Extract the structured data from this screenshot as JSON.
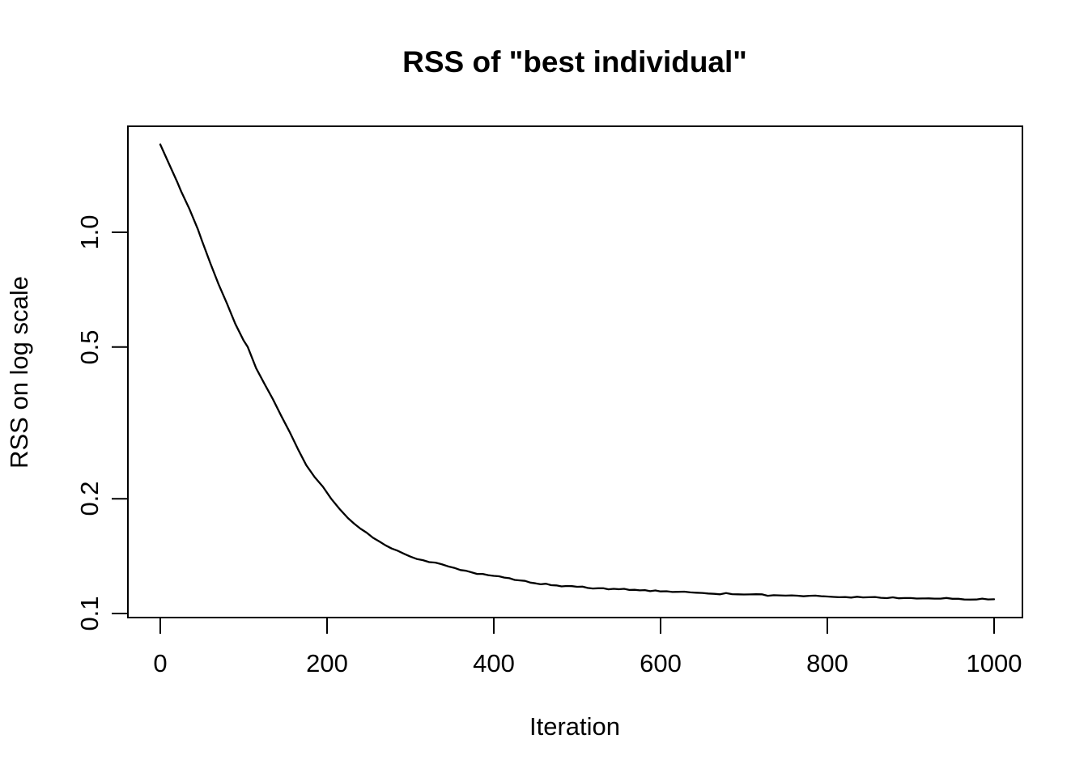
{
  "chart_data": {
    "type": "line",
    "title": "RSS of \"best individual\"",
    "xlabel": "Iteration",
    "ylabel": "RSS on log scale",
    "x_axis": {
      "ticks": [
        0,
        200,
        400,
        600,
        800,
        1000
      ],
      "range": [
        -39,
        1034
      ]
    },
    "y_axis": {
      "scale": "log10",
      "ticks": [
        {
          "label": "1.0",
          "value": 1.0
        },
        {
          "label": "0.5",
          "value": 0.5
        },
        {
          "label": "0.2",
          "value": 0.2
        },
        {
          "label": "0.1",
          "value": 0.1
        }
      ],
      "range": [
        0.098,
        1.9
      ]
    },
    "grid": false,
    "legend": "none",
    "line_color": "#000000",
    "background_color": "#ffffff",
    "series": [
      {
        "name": "RSS of best individual",
        "points": [
          [
            0,
            1.7
          ],
          [
            10,
            1.52
          ],
          [
            20,
            1.36
          ],
          [
            25,
            1.28
          ],
          [
            35,
            1.15
          ],
          [
            45,
            1.02
          ],
          [
            50,
            0.95
          ],
          [
            60,
            0.83
          ],
          [
            70,
            0.73
          ],
          [
            80,
            0.65
          ],
          [
            90,
            0.575
          ],
          [
            100,
            0.52
          ],
          [
            105,
            0.5
          ],
          [
            115,
            0.44
          ],
          [
            125,
            0.4
          ],
          [
            135,
            0.365
          ],
          [
            145,
            0.33
          ],
          [
            155,
            0.3
          ],
          [
            165,
            0.27
          ],
          [
            175,
            0.245
          ],
          [
            185,
            0.228
          ],
          [
            195,
            0.215
          ],
          [
            205,
            0.2
          ],
          [
            215,
            0.188
          ],
          [
            225,
            0.178
          ],
          [
            240,
            0.167
          ],
          [
            255,
            0.158
          ],
          [
            270,
            0.151
          ],
          [
            285,
            0.146
          ],
          [
            300,
            0.141
          ],
          [
            315,
            0.138
          ],
          [
            330,
            0.136
          ],
          [
            345,
            0.133
          ],
          [
            360,
            0.13
          ],
          [
            380,
            0.127
          ],
          [
            400,
            0.1255
          ],
          [
            425,
            0.1225
          ],
          [
            450,
            0.12
          ],
          [
            475,
            0.1185
          ],
          [
            500,
            0.1175
          ],
          [
            525,
            0.1165
          ],
          [
            550,
            0.1158
          ],
          [
            575,
            0.115
          ],
          [
            600,
            0.1143
          ],
          [
            650,
            0.1132
          ],
          [
            700,
            0.1122
          ],
          [
            750,
            0.1114
          ],
          [
            800,
            0.1108
          ],
          [
            850,
            0.1103
          ],
          [
            900,
            0.1098
          ],
          [
            950,
            0.1093
          ],
          [
            1000,
            0.109
          ]
        ]
      }
    ]
  }
}
